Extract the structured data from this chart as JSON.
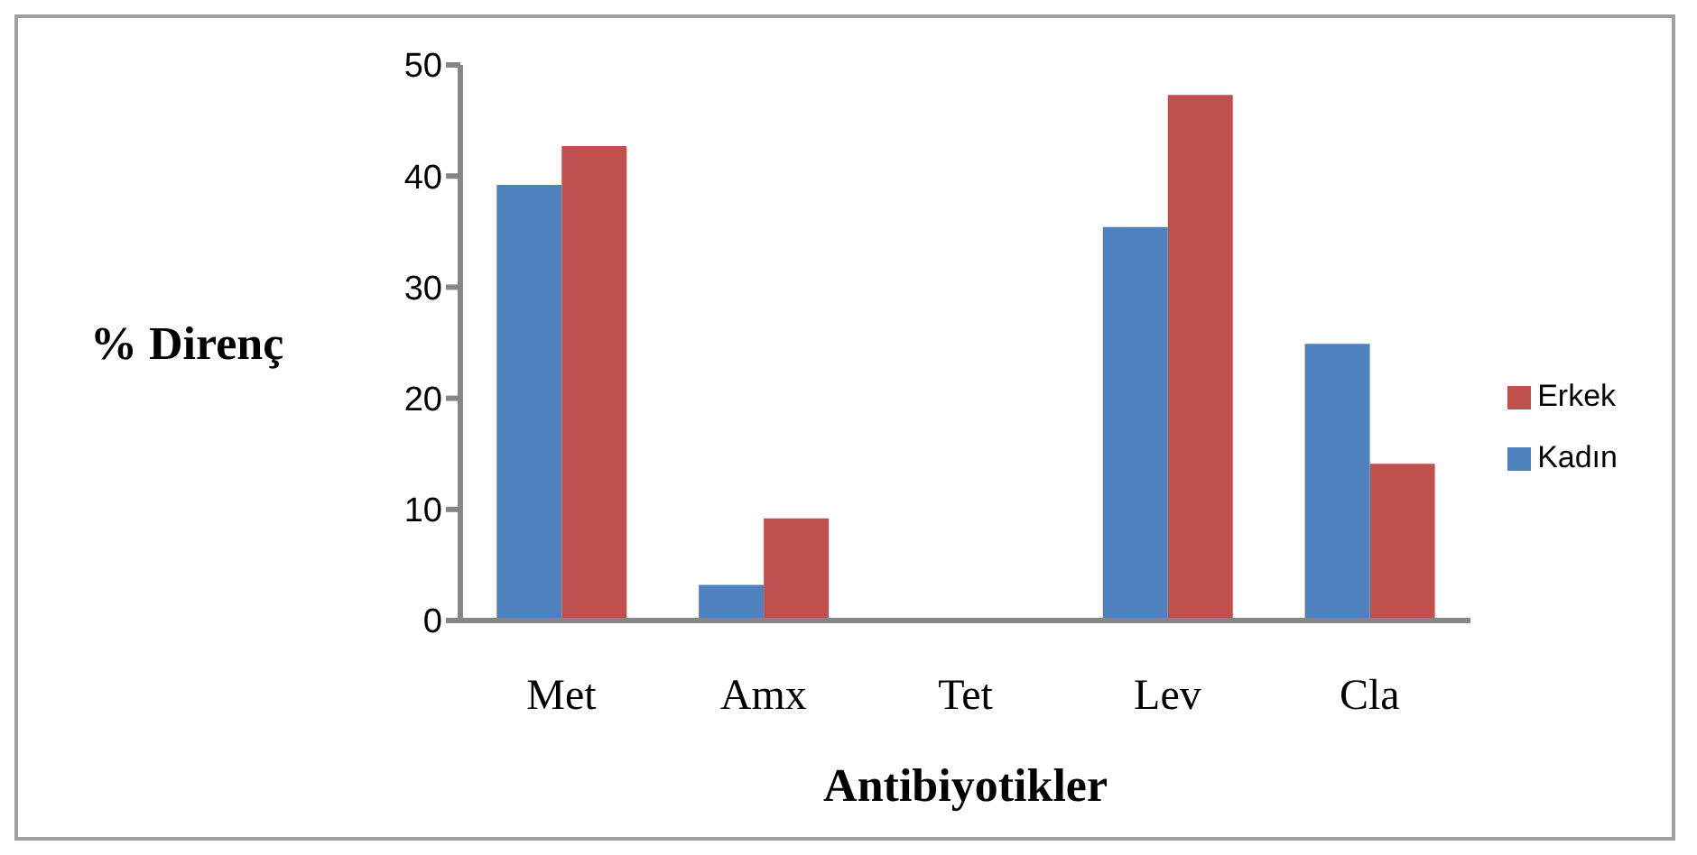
{
  "chart_data": {
    "type": "bar",
    "xlabel": "Antibiyotikler",
    "ylabel": "% Direnç",
    "categories": [
      "Met",
      "Amx",
      "Tet",
      "Lev",
      "Cla"
    ],
    "series": [
      {
        "name": "Kadın",
        "color": "#4f81bd",
        "values": [
          39.2,
          3.2,
          0,
          35.4,
          24.9
        ]
      },
      {
        "name": "Erkek",
        "color": "#c0504d",
        "values": [
          42.7,
          9.2,
          0,
          47.3,
          14.1
        ]
      }
    ],
    "ylim": [
      0,
      50
    ],
    "yticks": [
      0,
      10,
      20,
      30,
      40,
      50
    ],
    "grid": false,
    "legend": "right"
  }
}
